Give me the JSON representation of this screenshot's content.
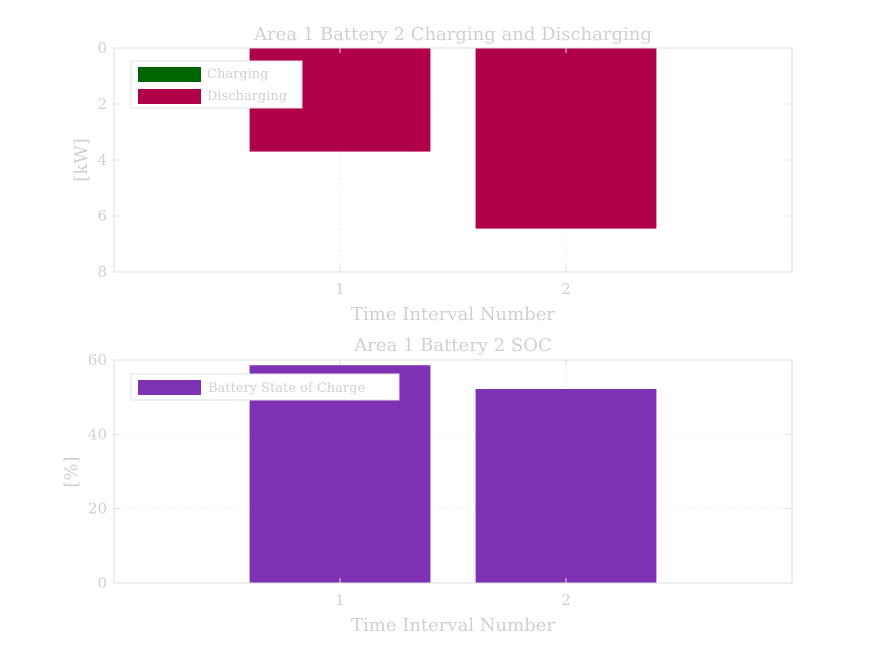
{
  "colors": {
    "charging": "#006400",
    "discharging": "#b0004a",
    "soc": "#7e32b3"
  },
  "chart_data": [
    {
      "type": "bar",
      "title": "Area 1 Battery 2 Charging and Discharging",
      "xlabel": "Time Interval Number",
      "ylabel": "[kW]",
      "categories": [
        "1",
        "2"
      ],
      "x_ticks": [
        "1",
        "2"
      ],
      "xlim": [
        0,
        3
      ],
      "ylim": [
        0,
        8
      ],
      "y_reversed": true,
      "y_ticks": [
        "0",
        "2",
        "4",
        "6",
        "8"
      ],
      "grid": true,
      "legend_position": "top-left",
      "series": [
        {
          "name": "Charging",
          "values": [
            0,
            0
          ]
        },
        {
          "name": "Discharging",
          "values": [
            3.7,
            6.45
          ]
        }
      ]
    },
    {
      "type": "bar",
      "title": "Area 1 Battery 2 SOC",
      "xlabel": "Time Interval Number",
      "ylabel": "[%]",
      "categories": [
        "1",
        "2"
      ],
      "x_ticks": [
        "1",
        "2"
      ],
      "xlim": [
        0,
        3
      ],
      "ylim": [
        0,
        60
      ],
      "y_reversed": false,
      "y_ticks": [
        "0",
        "20",
        "40",
        "60"
      ],
      "grid": true,
      "legend_position": "top-left",
      "series": [
        {
          "name": "Battery State of Charge",
          "values": [
            58.6,
            52.2
          ]
        }
      ]
    }
  ]
}
